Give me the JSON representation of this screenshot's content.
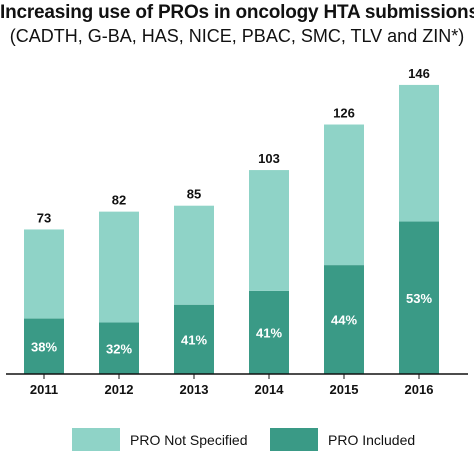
{
  "chart_data": {
    "type": "bar",
    "stacked": true,
    "title": "Increasing use of PROs in oncology HTA submissions",
    "subtitle": "(CADTH, G-BA, HAS, NICE, PBAC, SMC, TLV and ZIN*)",
    "categories": [
      "2011",
      "2012",
      "2013",
      "2014",
      "2015",
      "2016"
    ],
    "totals": [
      "73",
      "82",
      "85",
      "103",
      "126",
      "146"
    ],
    "percent_labels": [
      "38%",
      "32%",
      "41%",
      "41%",
      "44%",
      "53%"
    ],
    "series": [
      {
        "name": "PRO Included",
        "values": [
          28,
          26,
          35,
          42,
          55,
          77
        ],
        "color": "#3a9a86"
      },
      {
        "name": "PRO Not Specified",
        "values": [
          45,
          56,
          50,
          61,
          71,
          69
        ],
        "color": "#8fd3c7"
      }
    ],
    "ylim": [
      0,
      160
    ],
    "grid": false,
    "legend_position": "bottom"
  }
}
